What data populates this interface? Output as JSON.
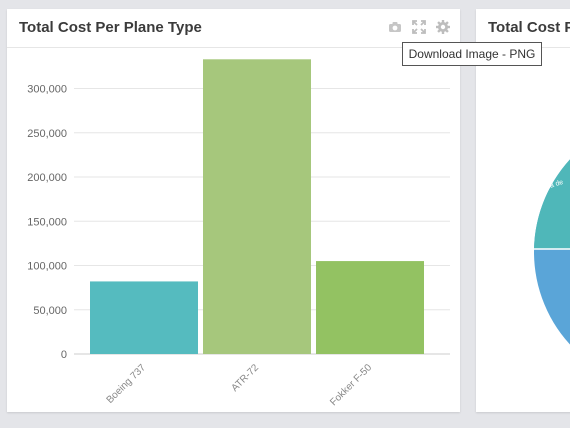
{
  "left_panel": {
    "title": "Total Cost Per Plane Type",
    "icons": [
      "camera-icon",
      "expand-icon",
      "gear-icon"
    ]
  },
  "right_panel": {
    "title": "Total Cost Per",
    "pie_label_fragment": "Isla de"
  },
  "tooltip": {
    "text": "Download Image - PNG"
  },
  "colors": {
    "bar_boeing": "#55bbbf",
    "bar_atr": "#a6c77c",
    "bar_fokker": "#93c262",
    "pie_teal": "#4fb7b9",
    "pie_blue": "#5aa5d8"
  },
  "chart_data": {
    "type": "bar",
    "title": "Total Cost Per Plane Type",
    "categories": [
      "Boeing 737",
      "ATR-72",
      "Fokker F-50"
    ],
    "values": [
      82000,
      333000,
      105000
    ],
    "yticks": [
      "0",
      "50,000",
      "100,000",
      "150,000",
      "200,000",
      "250,000",
      "300,000"
    ],
    "ylim": [
      0,
      335000
    ],
    "grid": true
  }
}
